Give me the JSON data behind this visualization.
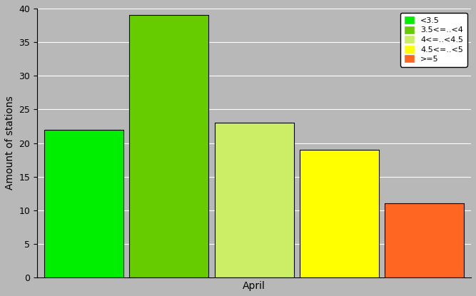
{
  "bars": [
    {
      "label": "<3.5",
      "value": 22,
      "color": "#00EE00"
    },
    {
      "label": "3.5<=..<4",
      "value": 39,
      "color": "#66CC00"
    },
    {
      "label": "4<=..<4.5",
      "value": 23,
      "color": "#CCEE66"
    },
    {
      "label": "4.5<=..<5",
      "value": 19,
      "color": "#FFFF00"
    },
    {
      "label": ">=5",
      "value": 11,
      "color": "#FF6622"
    }
  ],
  "ylabel": "Amount of stations",
  "xlabel": "April",
  "ylim": [
    0,
    40
  ],
  "yticks": [
    0,
    5,
    10,
    15,
    20,
    25,
    30,
    35,
    40
  ],
  "background_color": "#B8B8B8",
  "bar_width": 0.93,
  "legend_labels": [
    "<3.5",
    "3.5<=..<4",
    "4<=..<4.5",
    "4.5<=..<5",
    ">=5"
  ],
  "legend_colors": [
    "#00EE00",
    "#66CC00",
    "#CCEE66",
    "#FFFF00",
    "#FF6622"
  ]
}
